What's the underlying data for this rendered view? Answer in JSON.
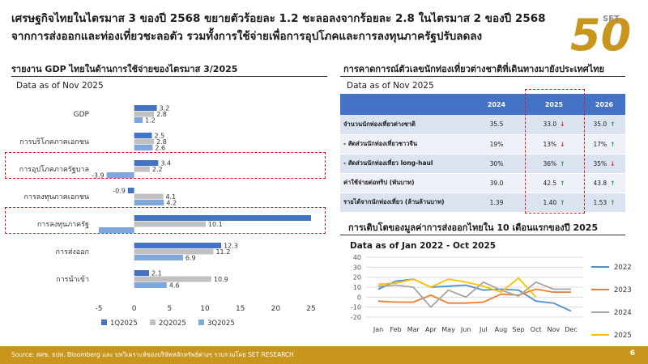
{
  "header": {
    "title_line1": "เศรษฐกิจไทยในไตรมาส 3 ของปี 2568 ขยายตัวร้อยละ 1.2 ชะลอลงจากร้อยละ 2.8 ในไตรมาส 2 ของปี 2568",
    "title_line2": "จากการส่งออกและท่องเที่ยวชะลอตัว รวมทั้งการใช้จ่ายเพื่อการอุปโภคและการลงทุนภาครัฐปรับลดลง",
    "logo_number": "50",
    "logo_text": "SET",
    "logo_suffix": "th",
    "accent_color": "#c8961d"
  },
  "gdp_section": {
    "title": "รายงาน GDP ไทยในด้านการใช้จ่ายของไตรมาส 3/2025",
    "as_of": "Data as of Nov 2025"
  },
  "tourism_section": {
    "title": "การคาดการณ์ตัวเลขนักท่องเที่ยวต่างชาติที่เดินทางมายังประเทศไทย",
    "as_of": "Data as of Nov 2025",
    "columns": [
      "",
      "2024",
      "2025",
      "2026"
    ],
    "rows": [
      {
        "label": "จำนวนนักท่องเที่ยวต่างชาติ",
        "v2024": "35.5",
        "v2025": "33.0",
        "d2025": "down",
        "v2026": "35.0",
        "d2026": "up"
      },
      {
        "label": "- สัดส่วนนักท่องเที่ยวชาวจีน",
        "v2024": "19%",
        "v2025": "13%",
        "d2025": "down",
        "v2026": "17%",
        "d2026": "up"
      },
      {
        "label": "- สัดส่วนนักท่องเที่ยว long-haul",
        "v2024": "30%",
        "v2025": "36%",
        "d2025": "up",
        "v2026": "35%",
        "d2026": "down"
      },
      {
        "label": "ค่าใช้จ่ายต่อทริป (พันบาท)",
        "v2024": "39.0",
        "v2025": "42.5",
        "d2025": "up",
        "v2026": "43.8",
        "d2026": "up"
      },
      {
        "label": "รายได้จากนักท่องเที่ยว (ล้านล้านบาท)",
        "v2024": "1.39",
        "v2025": "1.40",
        "d2025": "up",
        "v2026": "1.53",
        "d2026": "up"
      }
    ],
    "up_color": "#1a9a4a",
    "down_color": "#e0191b"
  },
  "export_section": {
    "title": "การเติบโตของมูลค่าการส่งออกไทยใน 10 เดือนแรกของปี 2025",
    "as_of": "Data as of Jan 2022 - Oct 2025"
  },
  "footer": {
    "source": "Source: สศช. ธปท. Bloomberg และ บทวิเคราะห์ของบริษัทหลักทรัพย์ต่างๆ รวบรวมโดย SET RESEARCH",
    "page": "6"
  },
  "chart_data": [
    {
      "type": "bar",
      "orientation": "horizontal",
      "categories": [
        "GDP",
        "การบริโภคภาคเอกชน",
        "การอุปโภคภาครัฐบาล",
        "การลงทุนภาคเอกชน",
        "การลงทุนภาครัฐ",
        "การส่งออก",
        "การนำเข้า"
      ],
      "series": [
        {
          "name": "1Q2025",
          "color": "#4472c4",
          "values": [
            3.2,
            2.5,
            3.4,
            -0.9,
            25.0,
            12.3,
            2.1
          ]
        },
        {
          "name": "2Q2025",
          "color": "#c0c0c0",
          "values": [
            2.8,
            2.8,
            2.2,
            4.1,
            10.1,
            11.2,
            10.9
          ]
        },
        {
          "name": "3Q2025",
          "color": "#7fa7dc",
          "values": [
            1.2,
            2.6,
            -3.9,
            4.2,
            -5.0,
            6.9,
            4.6
          ]
        }
      ],
      "data_labels": [
        [
          "3.2",
          "2.5",
          "3.4",
          "-0.9",
          "",
          "12.3",
          "2.1"
        ],
        [
          "2.8",
          "2.8",
          "2.2",
          "4.1",
          "10.1",
          "11.2",
          "10.9"
        ],
        [
          "1.2",
          "2.6",
          "-3.9",
          "4.2",
          "",
          "6.9",
          "4.6"
        ]
      ],
      "xlim": [
        -5,
        25
      ],
      "xticks": [
        "-5",
        "0",
        "5",
        "10",
        "15",
        "20",
        "25"
      ],
      "highlighted_categories": [
        "การอุปโภคภาครัฐบาล",
        "การลงทุนภาครัฐ"
      ],
      "legend_position": "bottom",
      "grid": false
    },
    {
      "type": "line",
      "x": [
        "Jan",
        "Feb",
        "Mar",
        "Apr",
        "May",
        "Jun",
        "Jul",
        "Aug",
        "Sep",
        "Oct",
        "Nov",
        "Dec"
      ],
      "series": [
        {
          "name": "2022",
          "color": "#4e8fc9",
          "values": [
            8,
            16,
            18,
            10,
            11,
            12,
            7,
            8,
            7,
            -4,
            -6,
            -14
          ]
        },
        {
          "name": "2023",
          "color": "#ed7d31",
          "values": [
            -4,
            -5,
            -5,
            2,
            -6,
            -6,
            -5,
            3,
            2,
            8,
            5,
            5
          ]
        },
        {
          "name": "2024",
          "color": "#a5a5a5",
          "values": [
            11,
            12,
            10,
            -10,
            7,
            0,
            15,
            7,
            1,
            15,
            8,
            8
          ]
        },
        {
          "name": "2025",
          "color": "#ffc000",
          "values": [
            13,
            14,
            18,
            10,
            18,
            15,
            11,
            5,
            19,
            0,
            null,
            null
          ]
        }
      ],
      "ylim": [
        -20,
        40
      ],
      "yticks": [
        "-20",
        "-10",
        "0",
        "10",
        "20",
        "30",
        "40"
      ],
      "grid": true,
      "legend_position": "right"
    }
  ]
}
